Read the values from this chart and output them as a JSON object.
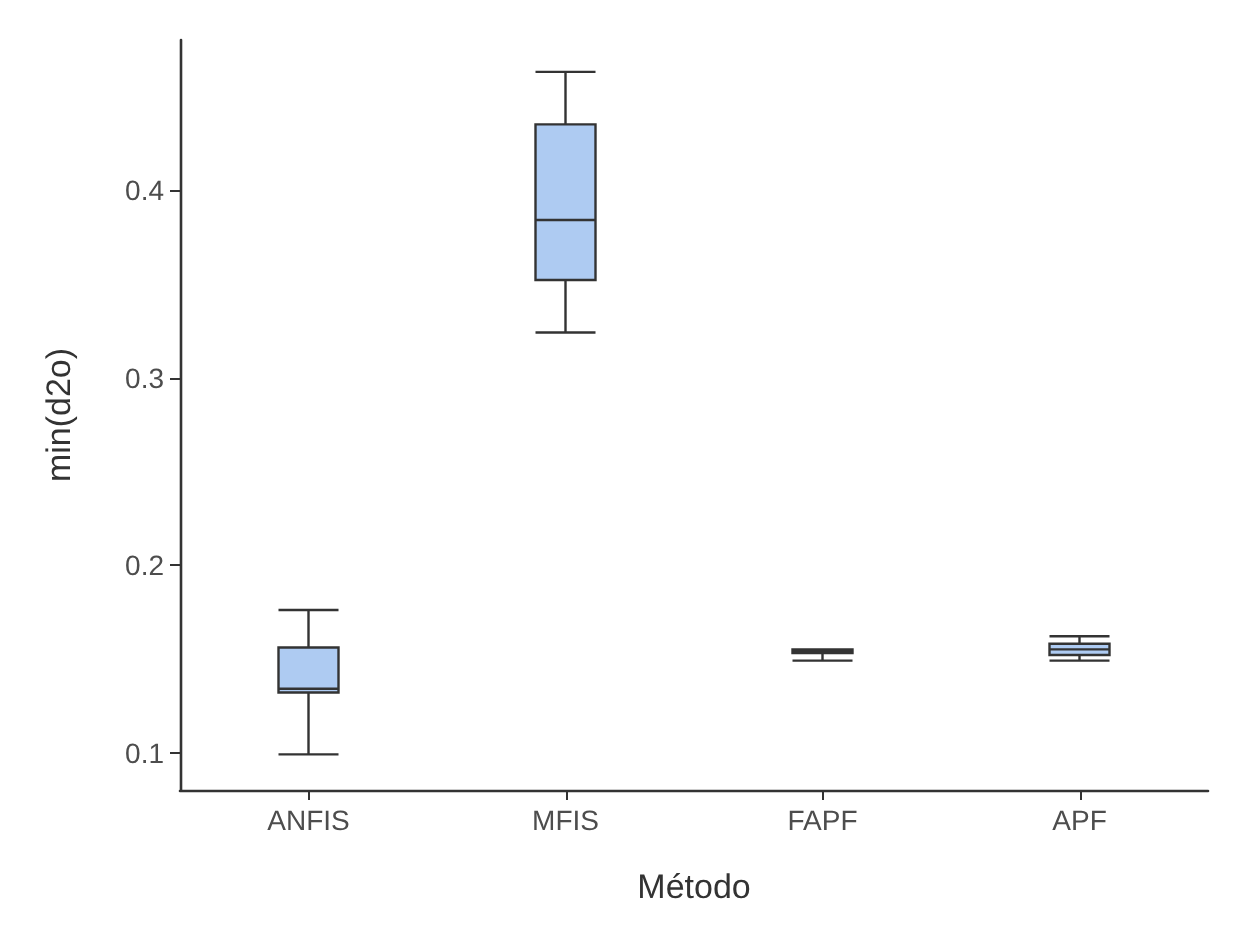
{
  "chart_data": {
    "type": "box",
    "xlabel": "Método",
    "ylabel": "min(d2o)",
    "categories": [
      "ANFIS",
      "MFIS",
      "FAPF",
      "APF"
    ],
    "series": [
      {
        "color": "#aecbf2",
        "boxes": [
          {
            "low": 0.099,
            "q1": 0.132,
            "median": 0.134,
            "q3": 0.156,
            "high": 0.176
          },
          {
            "low": 0.324,
            "q1": 0.352,
            "median": 0.384,
            "q3": 0.435,
            "high": 0.463
          },
          {
            "low": 0.149,
            "q1": 0.153,
            "median": 0.154,
            "q3": 0.155,
            "high": 0.155
          },
          {
            "low": 0.149,
            "q1": 0.152,
            "median": 0.155,
            "q3": 0.158,
            "high": 0.162
          }
        ]
      }
    ],
    "ylim": [
      0.08,
      0.48
    ],
    "yticks": [
      0.1,
      0.2,
      0.3,
      0.4
    ],
    "grid": false
  }
}
